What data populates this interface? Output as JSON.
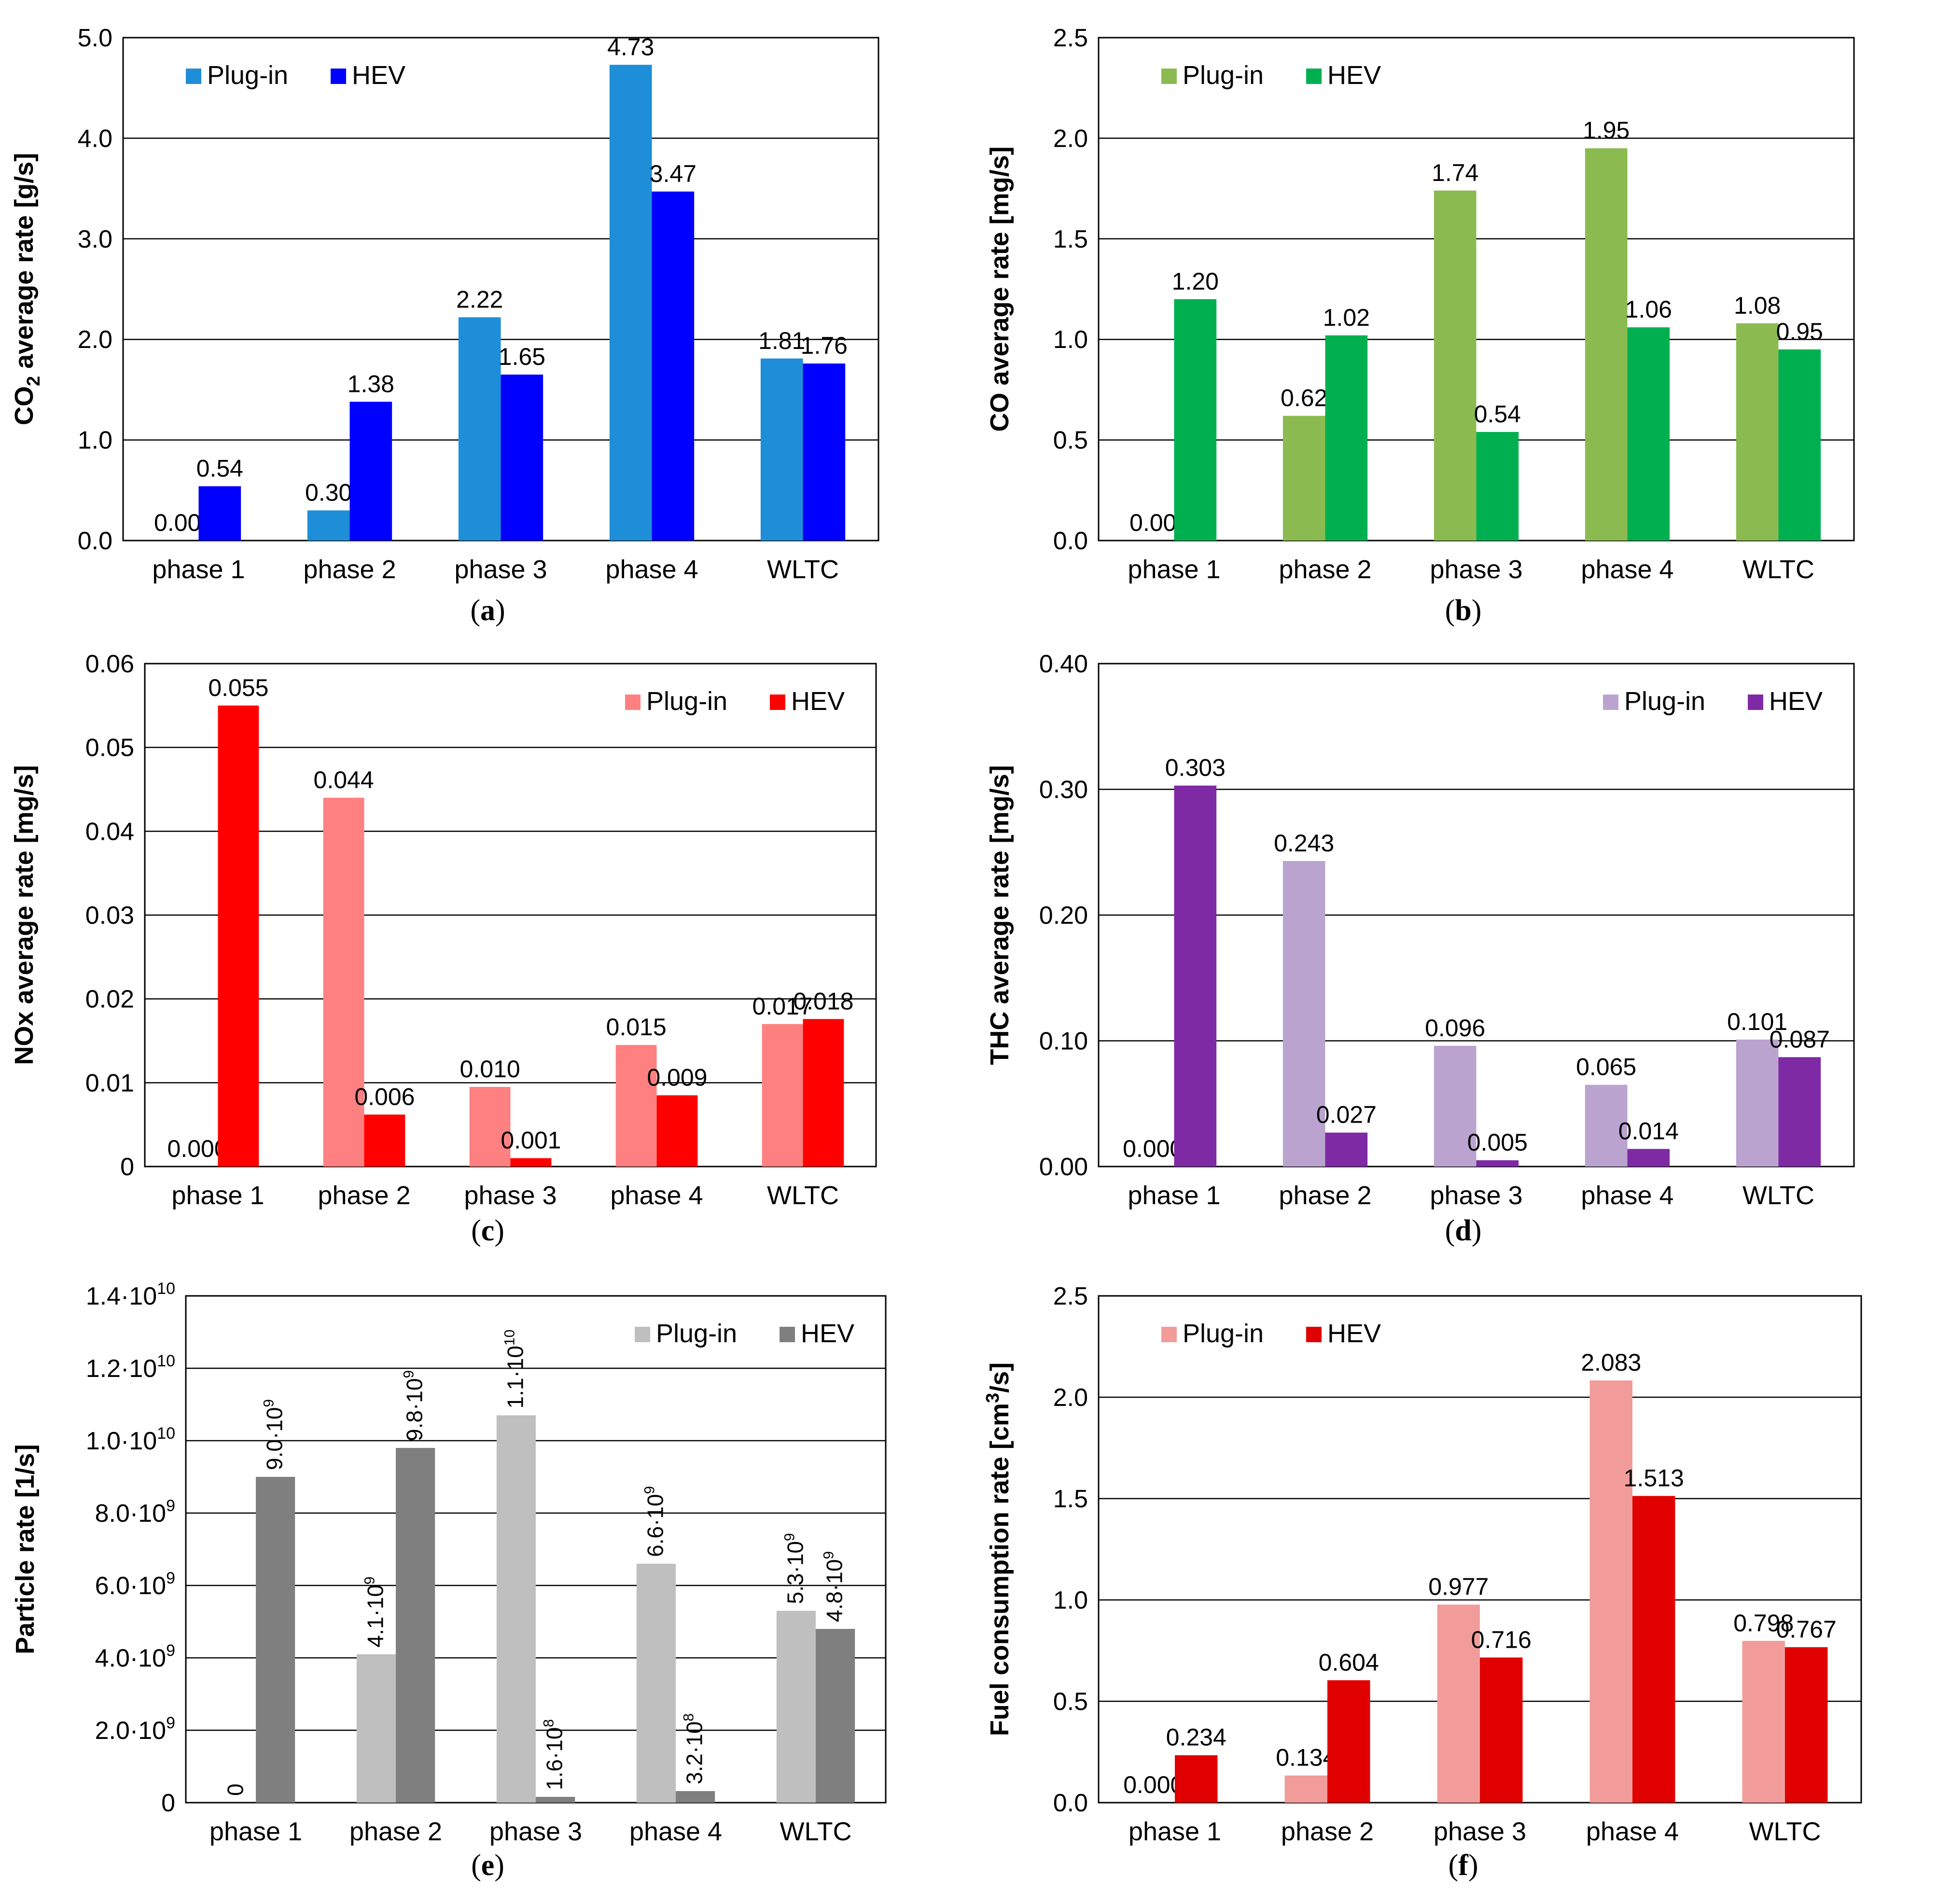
{
  "chart_data": [
    {
      "type": "bar",
      "panel": "(a)",
      "panel_letter": "a",
      "ylabel_main": "CO",
      "ylabel_sub": "2",
      "ylabel_rest": " average rate [g/s]",
      "categories": [
        "phase 1",
        "phase 2",
        "phase 3",
        "phase 4",
        "WLTC"
      ],
      "ylim": [
        0,
        5
      ],
      "yticks": [
        "0.0",
        "1.0",
        "2.0",
        "3.0",
        "4.0",
        "5.0"
      ],
      "legend_position": "top-left",
      "series": [
        {
          "name": "Plug-in",
          "color": "#1f8ed8",
          "values": [
            0.0,
            0.3,
            2.22,
            4.73,
            1.81
          ],
          "labels": [
            "0.00",
            "0.30",
            "2.22",
            "4.73",
            "1.81"
          ]
        },
        {
          "name": "HEV",
          "color": "#0000ff",
          "values": [
            0.54,
            1.38,
            1.65,
            3.47,
            1.76
          ],
          "labels": [
            "0.54",
            "1.38",
            "1.65",
            "3.47",
            "1.76"
          ]
        }
      ]
    },
    {
      "type": "bar",
      "panel": "(b)",
      "panel_letter": "b",
      "ylabel_main": "CO average rate [mg/s]",
      "categories": [
        "phase 1",
        "phase 2",
        "phase 3",
        "phase 4",
        "WLTC"
      ],
      "ylim": [
        0,
        2.5
      ],
      "yticks": [
        "0.0",
        "0.5",
        "1.0",
        "1.5",
        "2.0",
        "2.5"
      ],
      "legend_position": "top-left",
      "series": [
        {
          "name": "Plug-in",
          "color": "#8bbb50",
          "values": [
            0.0,
            0.62,
            1.74,
            1.95,
            1.08
          ],
          "labels": [
            "0.00",
            "0.62",
            "1.74",
            "1.95",
            "1.08"
          ]
        },
        {
          "name": "HEV",
          "color": "#00b050",
          "values": [
            1.2,
            1.02,
            0.54,
            1.06,
            0.95
          ],
          "labels": [
            "1.20",
            "1.02",
            "0.54",
            "1.06",
            "0.95"
          ]
        }
      ]
    },
    {
      "type": "bar",
      "panel": "(c)",
      "panel_letter": "c",
      "ylabel_main": "NOx average rate [mg/s]",
      "categories": [
        "phase 1",
        "phase 2",
        "phase 3",
        "phase 4",
        "WLTC"
      ],
      "ylim": [
        0,
        0.06
      ],
      "yticks": [
        "0",
        "0.01",
        "0.02",
        "0.03",
        "0.04",
        "0.05",
        "0.06"
      ],
      "legend_position": "top-right",
      "series": [
        {
          "name": "Plug-in",
          "color": "#ff8080",
          "values": [
            0.0,
            0.044,
            0.0095,
            0.0145,
            0.017
          ],
          "labels": [
            "0.000",
            "0.044",
            "0.010",
            "0.015",
            "0.017"
          ]
        },
        {
          "name": "HEV",
          "color": "#ff0000",
          "values": [
            0.055,
            0.0062,
            0.001,
            0.0085,
            0.0176
          ],
          "labels": [
            "0.055",
            "0.006",
            "0.001",
            "0.009",
            "0.018"
          ]
        }
      ]
    },
    {
      "type": "bar",
      "panel": "(d)",
      "panel_letter": "d",
      "ylabel_main": "THC average rate [mg/s]",
      "categories": [
        "phase 1",
        "phase 2",
        "phase 3",
        "phase 4",
        "WLTC"
      ],
      "ylim": [
        0,
        0.4
      ],
      "yticks": [
        "0.00",
        "0.10",
        "0.20",
        "0.30",
        "0.40"
      ],
      "legend_position": "top-right",
      "series": [
        {
          "name": "Plug-in",
          "color": "#bba3cf",
          "values": [
            0.0,
            0.243,
            0.096,
            0.065,
            0.101
          ],
          "labels": [
            "0.000",
            "0.243",
            "0.096",
            "0.065",
            "0.101"
          ]
        },
        {
          "name": "HEV",
          "color": "#7f2aa5",
          "values": [
            0.303,
            0.027,
            0.005,
            0.014,
            0.087
          ],
          "labels": [
            "0.303",
            "0.027",
            "0.005",
            "0.014",
            "0.087"
          ]
        }
      ]
    },
    {
      "type": "bar",
      "panel": "(e)",
      "panel_letter": "e",
      "ylabel_main": "Particle rate [1/s]",
      "categories": [
        "phase 1",
        "phase 2",
        "phase 3",
        "phase 4",
        "WLTC"
      ],
      "ylim": [
        0,
        14000000000.0
      ],
      "ytick_mantissa": [
        "0",
        "2.0·10",
        "4.0·10",
        "6.0·10",
        "8.0·10",
        "1.0·10",
        "1.2·10",
        "1.4·10"
      ],
      "ytick_exp": [
        "",
        "9",
        "9",
        "9",
        "9",
        "10",
        "10",
        "10"
      ],
      "legend_position": "top-right",
      "label_rotation": -90,
      "series": [
        {
          "name": "Plug-in",
          "color": "#bfbfbf",
          "values": [
            0,
            4100000000.0,
            10700000000.0,
            6600000000.0,
            5300000000.0
          ],
          "label_mantissa": [
            "0",
            "4.1·10",
            "1.1·10",
            "6.6·10",
            "5.3·10"
          ],
          "label_exp": [
            "",
            "9",
            "10",
            "9",
            "9"
          ]
        },
        {
          "name": "HEV",
          "color": "#7f7f7f",
          "values": [
            9000000000.0,
            9800000000.0,
            160000000.0,
            320000000.0,
            4800000000.0
          ],
          "label_mantissa": [
            "9.0·10",
            "9.8·10",
            "1.6·10",
            "3.2·10",
            "4.8·10"
          ],
          "label_exp": [
            "9",
            "9",
            "8",
            "8",
            "9"
          ]
        }
      ]
    },
    {
      "type": "bar",
      "panel": "(f)",
      "panel_letter": "f",
      "ylabel_main": "Fuel consumption rate [cm",
      "ylabel_sup": "3",
      "ylabel_rest": "/s]",
      "categories": [
        "phase 1",
        "phase 2",
        "phase 3",
        "phase 4",
        "WLTC"
      ],
      "ylim": [
        0,
        2.5
      ],
      "yticks": [
        "0.0",
        "0.5",
        "1.0",
        "1.5",
        "2.0",
        "2.5"
      ],
      "legend_position": "top-left",
      "series": [
        {
          "name": "Plug-in",
          "color": "#f19c9a",
          "values": [
            0.0,
            0.134,
            0.977,
            2.083,
            0.798
          ],
          "labels": [
            "0.000",
            "0.134",
            "0.977",
            "2.083",
            "0.798"
          ]
        },
        {
          "name": "HEV",
          "color": "#e00000",
          "values": [
            0.234,
            0.604,
            0.716,
            1.513,
            0.767
          ],
          "labels": [
            "0.234",
            "0.604",
            "0.716",
            "1.513",
            "0.767"
          ]
        }
      ]
    }
  ]
}
